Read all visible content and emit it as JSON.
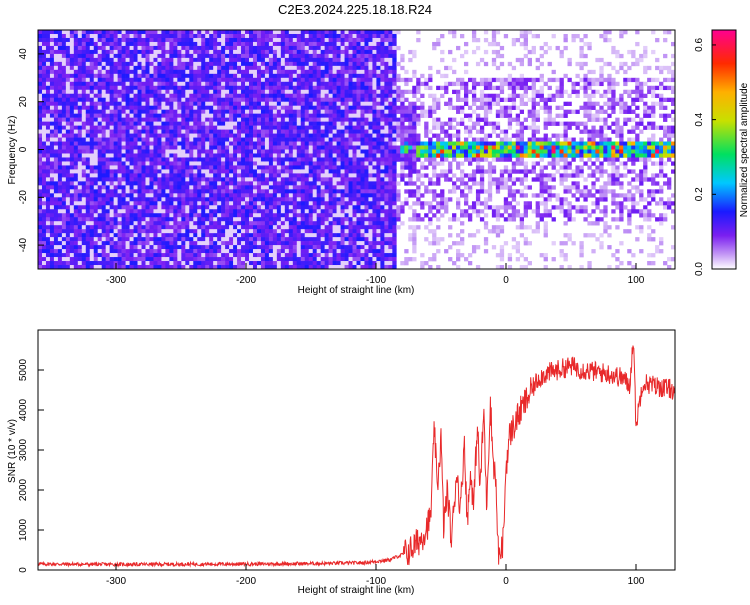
{
  "title": "C2E3.2024.225.18.18.R24",
  "colors": {
    "axis": "#000000",
    "snr_line": "#e8292a",
    "spectrogram_noise": "#7b1ff2",
    "spectrogram_faint": "#c9a6f5"
  },
  "chart_data": [
    {
      "type": "heatmap",
      "xlabel": "Height of straight line (km)",
      "ylabel": "Frequency (Hz)",
      "xlim": [
        -360,
        130
      ],
      "ylim": [
        -50,
        50
      ],
      "xticks": [
        -300,
        -200,
        -100,
        0,
        100
      ],
      "yticks": [
        -40,
        -20,
        0,
        20,
        40
      ],
      "grid": false,
      "regions": [
        {
          "x_range": [
            -360,
            -85
          ],
          "description_value": "full-band noise, amplitude ~0.1-0.15"
        },
        {
          "x_range": [
            -85,
            130
          ],
          "f_range": [
            -35,
            35
          ],
          "description_value": "faint noise, amplitude ~0.03-0.08"
        },
        {
          "x_range": [
            -80,
            130
          ],
          "f_center": 0,
          "f_halfwidth": 3,
          "peak_amplitude": 0.62,
          "description_value": "carrier tone near 0 Hz"
        }
      ],
      "colorbar": {
        "label": "Normalized spectral amplitude",
        "range": [
          0,
          0.64
        ],
        "ticks": [
          "0.0",
          "0.2",
          "0.4",
          "0.6"
        ],
        "colormap": "rainbow (white-violet-blue-cyan-green-yellow-red-magenta)"
      }
    },
    {
      "type": "line",
      "xlabel": "Height of straight line (km)",
      "ylabel": "SNR (10 * v/v)",
      "xlim": [
        -360,
        130
      ],
      "ylim": [
        0,
        6000
      ],
      "xticks": [
        -300,
        -200,
        -100,
        0,
        100
      ],
      "yticks": [
        0,
        1000,
        2000,
        3000,
        4000,
        5000
      ],
      "grid": false,
      "series": [
        {
          "x": [
            -360,
            -300,
            -250,
            -200,
            -150,
            -110,
            -90,
            -75,
            -65,
            -58,
            -55,
            -53,
            -50,
            -48,
            -45,
            -42,
            -38,
            -35,
            -32,
            -30,
            -27,
            -25,
            -22,
            -20,
            -17,
            -15,
            -12,
            -10,
            -8,
            -6,
            -4,
            -2,
            0,
            3,
            6,
            10,
            15,
            20,
            25,
            30,
            40,
            50,
            60,
            70,
            80,
            90,
            95,
            98,
            100,
            105,
            115,
            130
          ],
          "y": [
            150,
            140,
            145,
            150,
            160,
            180,
            250,
            450,
            800,
            1300,
            3600,
            2000,
            3300,
            1100,
            2000,
            700,
            2500,
            1500,
            3300,
            1200,
            2500,
            1500,
            3700,
            2000,
            4000,
            1600,
            4200,
            2800,
            2300,
            500,
            300,
            800,
            2600,
            3400,
            3600,
            3900,
            4200,
            4500,
            4800,
            4900,
            5000,
            5100,
            5000,
            4950,
            4900,
            4800,
            4600,
            5800,
            3600,
            4700,
            4600,
            4500
          ]
        }
      ]
    }
  ]
}
